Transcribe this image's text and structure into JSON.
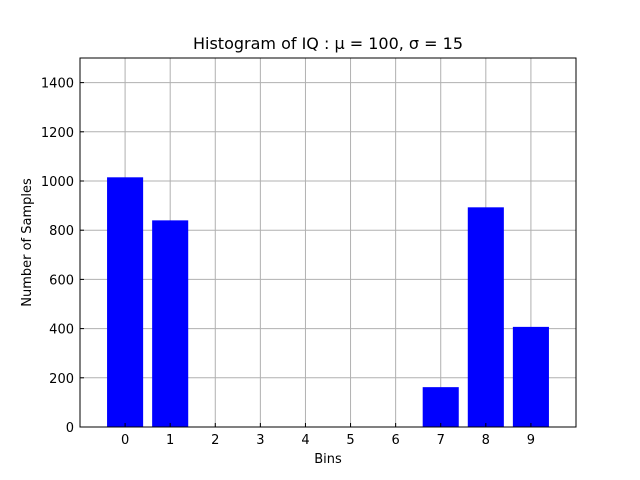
{
  "chart_data": {
    "type": "bar",
    "title": "Histogram of IQ :  μ = 100,  σ = 15",
    "xlabel": "Bins",
    "ylabel": "Number of Samples",
    "categories": [
      "0",
      "1",
      "2",
      "3",
      "4",
      "5",
      "6",
      "7",
      "8",
      "9"
    ],
    "values": [
      1015,
      840,
      0,
      0,
      0,
      0,
      0,
      162,
      893,
      407
    ],
    "ylim": [
      0,
      1500
    ],
    "yticks": [
      0,
      200,
      400,
      600,
      800,
      1000,
      1200,
      1400
    ],
    "grid": true,
    "bar_color": "#0000ff"
  }
}
